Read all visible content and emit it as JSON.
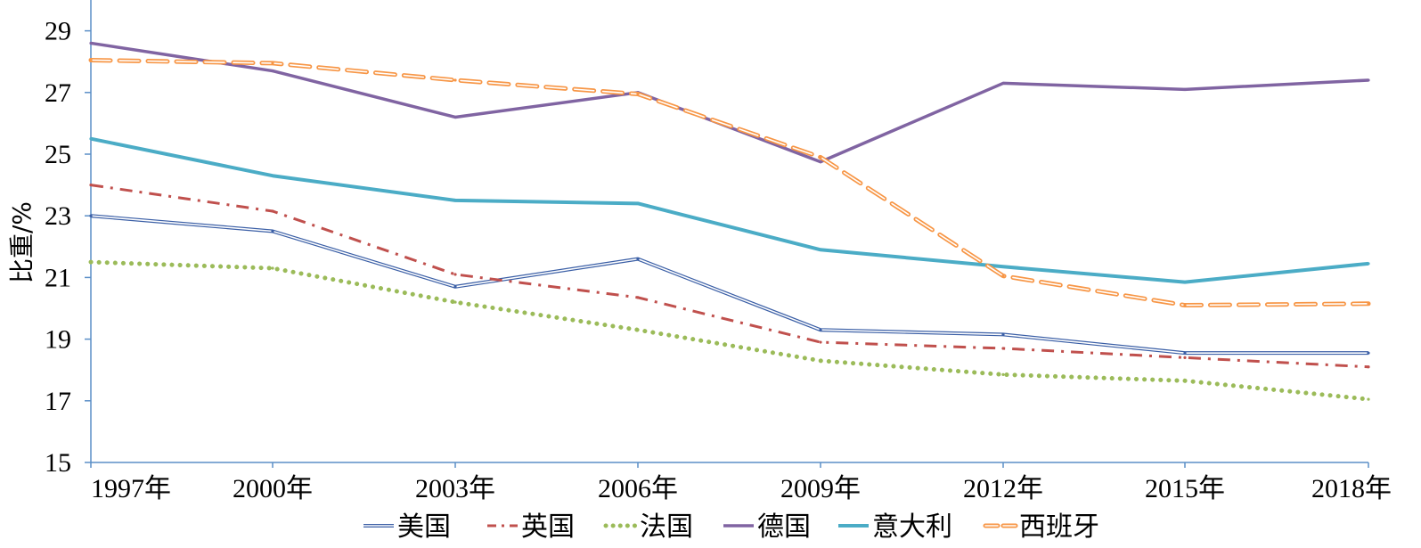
{
  "chart_data": {
    "type": "line",
    "title": "",
    "xlabel": "",
    "ylabel": "比重/%",
    "categories": [
      "1997年",
      "2000年",
      "2003年",
      "2006年",
      "2009年",
      "2012年",
      "2015年",
      "2018年"
    ],
    "ylim": [
      15,
      30
    ],
    "yticks": [
      15,
      17,
      19,
      21,
      23,
      25,
      27,
      29
    ],
    "grid": false,
    "legend_position": "bottom",
    "series": [
      {
        "name": "美国",
        "color": "#3b5fa6",
        "style": "double",
        "values": [
          23.0,
          22.5,
          20.7,
          21.6,
          19.3,
          19.15,
          18.55,
          18.55
        ]
      },
      {
        "name": "英国",
        "color": "#c0504d",
        "style": "dashdot",
        "values": [
          24.0,
          23.15,
          21.1,
          20.35,
          18.9,
          18.7,
          18.4,
          18.1
        ]
      },
      {
        "name": "法国",
        "color": "#9bbb59",
        "style": "dotted",
        "values": [
          21.5,
          21.3,
          20.2,
          19.3,
          18.3,
          17.85,
          17.65,
          17.05
        ]
      },
      {
        "name": "德国",
        "color": "#8064a2",
        "style": "solid",
        "values": [
          28.6,
          27.7,
          26.2,
          27.0,
          24.75,
          27.3,
          27.1,
          27.4
        ]
      },
      {
        "name": "意大利",
        "color": "#4bacc6",
        "style": "solid-thick",
        "values": [
          25.5,
          24.3,
          23.5,
          23.4,
          21.9,
          21.35,
          20.85,
          21.45
        ]
      },
      {
        "name": "西班牙",
        "color": "#f79646",
        "style": "dashed-double",
        "values": [
          28.05,
          27.95,
          27.4,
          26.95,
          24.9,
          21.05,
          20.1,
          20.15
        ]
      }
    ]
  }
}
